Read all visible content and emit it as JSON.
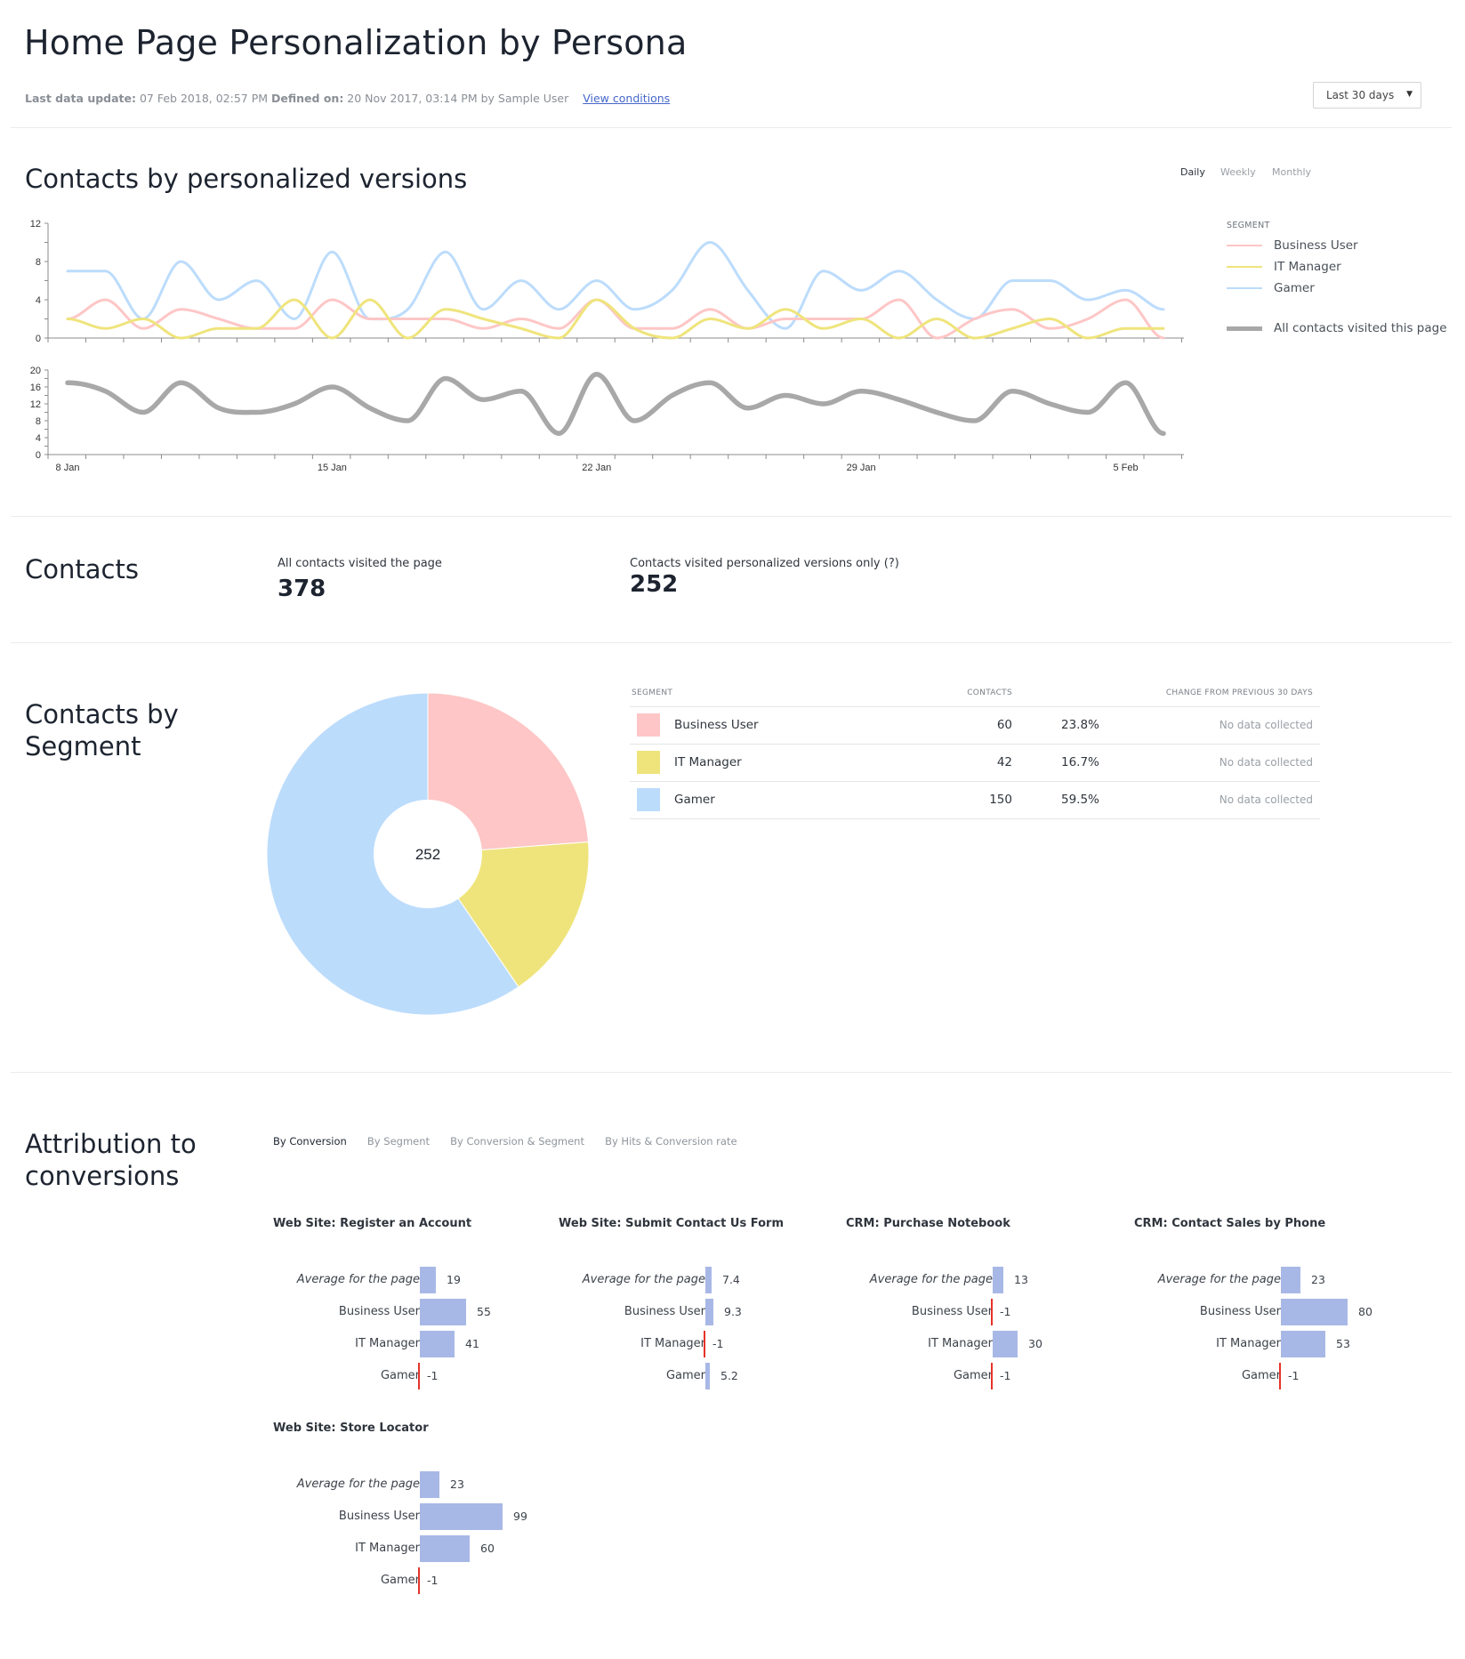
{
  "header": {
    "title": "Home Page Personalization by Persona",
    "meta": {
      "last_update_label": "Last data update:",
      "last_update_value": "07 Feb 2018, 02:57 PM",
      "defined_on_label": "Defined on:",
      "defined_on_value": "20 Nov 2017, 03:14 PM by Sample User",
      "view_conditions_link": "View conditions"
    },
    "date_range": {
      "selected": "Last 30 days",
      "caret": "▼"
    }
  },
  "colors": {
    "business_user": "#fec6c6",
    "it_manager": "#efe47c",
    "gamer": "#bcdcfc",
    "all_contacts": "#a8a8a8",
    "bar": "#a8b8e6",
    "negative_bar": "#e5332a",
    "link": "#4567c9"
  },
  "contacts_by_versions": {
    "title": "Contacts by personalized versions",
    "granularity": [
      {
        "label": "Daily",
        "active": true
      },
      {
        "label": "Weekly",
        "active": false
      },
      {
        "label": "Monthly",
        "active": false
      }
    ],
    "legend": {
      "heading": "SEGMENT",
      "items": [
        "Business User",
        "IT Manager",
        "Gamer"
      ],
      "total_label": "All contacts visited this page"
    }
  },
  "chart_data": [
    {
      "type": "line",
      "title": "Contacts by personalized versions (segments)",
      "x": [
        "8 Jan",
        "9 Jan",
        "10 Jan",
        "11 Jan",
        "12 Jan",
        "13 Jan",
        "14 Jan",
        "15 Jan",
        "16 Jan",
        "17 Jan",
        "18 Jan",
        "19 Jan",
        "20 Jan",
        "21 Jan",
        "22 Jan",
        "23 Jan",
        "24 Jan",
        "25 Jan",
        "26 Jan",
        "27 Jan",
        "28 Jan",
        "29 Jan",
        "30 Jan",
        "31 Jan",
        "1 Feb",
        "2 Feb",
        "3 Feb",
        "4 Feb",
        "5 Feb",
        "6 Feb"
      ],
      "x_tick_labels": [
        "8 Jan",
        "15 Jan",
        "22 Jan",
        "29 Jan",
        "5 Feb"
      ],
      "y_tick_labels": [
        "0",
        "4",
        "8",
        "12"
      ],
      "ylim": [
        0,
        12
      ],
      "series": [
        {
          "name": "Business User",
          "values": [
            2,
            4,
            1,
            3,
            2,
            1,
            1,
            4,
            2,
            2,
            2,
            1,
            2,
            1,
            4,
            1,
            1,
            3,
            1,
            2,
            2,
            2,
            4,
            0,
            2,
            3,
            1,
            2,
            4,
            0
          ]
        },
        {
          "name": "IT Manager",
          "values": [
            2,
            1,
            2,
            0,
            1,
            1,
            4,
            0,
            4,
            0,
            3,
            2,
            1,
            0,
            4,
            1,
            0,
            2,
            1,
            3,
            1,
            2,
            0,
            2,
            0,
            1,
            2,
            0,
            1,
            1
          ]
        },
        {
          "name": "Gamer",
          "values": [
            7,
            7,
            2,
            8,
            4,
            6,
            2,
            9,
            2,
            3,
            9,
            3,
            6,
            3,
            6,
            3,
            5,
            10,
            5,
            1,
            7,
            5,
            7,
            4,
            2,
            6,
            6,
            4,
            5,
            3
          ]
        }
      ]
    },
    {
      "type": "line",
      "title": "All contacts visited this page",
      "x": [
        "8 Jan",
        "9 Jan",
        "10 Jan",
        "11 Jan",
        "12 Jan",
        "13 Jan",
        "14 Jan",
        "15 Jan",
        "16 Jan",
        "17 Jan",
        "18 Jan",
        "19 Jan",
        "20 Jan",
        "21 Jan",
        "22 Jan",
        "23 Jan",
        "24 Jan",
        "25 Jan",
        "26 Jan",
        "27 Jan",
        "28 Jan",
        "29 Jan",
        "30 Jan",
        "31 Jan",
        "1 Feb",
        "2 Feb",
        "3 Feb",
        "4 Feb",
        "5 Feb",
        "6 Feb"
      ],
      "x_tick_labels": [
        "8 Jan",
        "15 Jan",
        "22 Jan",
        "29 Jan",
        "5 Feb"
      ],
      "y_tick_labels": [
        "0",
        "4",
        "8",
        "12",
        "16",
        "20"
      ],
      "ylim": [
        0,
        20
      ],
      "series": [
        {
          "name": "All contacts visited this page",
          "values": [
            17,
            15,
            10,
            17,
            11,
            10,
            12,
            16,
            11,
            8,
            18,
            13,
            15,
            5,
            19,
            8,
            14,
            17,
            11,
            14,
            12,
            15,
            13,
            10,
            8,
            15,
            12,
            10,
            17,
            5
          ]
        }
      ]
    },
    {
      "type": "pie",
      "title": "Contacts by Segment",
      "center_label": "252",
      "categories": [
        "Business User",
        "IT Manager",
        "Gamer"
      ],
      "values": [
        60,
        42,
        150
      ]
    }
  ],
  "contacts": {
    "title": "Contacts",
    "all_label": "All contacts visited the page",
    "all_value": "378",
    "personalized_label": "Contacts visited personalized versions only (?)",
    "personalized_value": "252"
  },
  "segments": {
    "title_line1": "Contacts by",
    "title_line2": "Segment",
    "columns": {
      "segment": "SEGMENT",
      "contacts": "CONTACTS",
      "change": "CHANGE FROM PREVIOUS 30 DAYS"
    },
    "rows": [
      {
        "name": "Business User",
        "contacts": "60",
        "percent": "23.8%",
        "change": "No data collected"
      },
      {
        "name": "IT Manager",
        "contacts": "42",
        "percent": "16.7%",
        "change": "No data collected"
      },
      {
        "name": "Gamer",
        "contacts": "150",
        "percent": "59.5%",
        "change": "No data collected"
      }
    ]
  },
  "attribution": {
    "title_line1": "Attribution to",
    "title_line2": "conversions",
    "tabs": [
      {
        "label": "By Conversion",
        "active": true
      },
      {
        "label": "By Segment",
        "active": false
      },
      {
        "label": "By Conversion & Segment",
        "active": false
      },
      {
        "label": "By Hits & Conversion rate",
        "active": false
      }
    ],
    "row_labels": [
      "Average for the page",
      "Business User",
      "IT Manager",
      "Gamer"
    ],
    "panels": [
      {
        "title": "Web Site: Register an Account",
        "values": [
          19,
          55,
          41,
          -1
        ],
        "labels": [
          "19",
          "55",
          "41",
          "-1"
        ]
      },
      {
        "title": "Web Site: Submit Contact Us Form",
        "values": [
          7.4,
          9.3,
          -1,
          5.2
        ],
        "labels": [
          "7.4",
          "9.3",
          "-1",
          "5.2"
        ]
      },
      {
        "title": "CRM: Purchase Notebook",
        "values": [
          13,
          -1,
          30,
          -1
        ],
        "labels": [
          "13",
          "-1",
          "30",
          "-1"
        ]
      },
      {
        "title": "CRM: Contact Sales by Phone",
        "values": [
          23,
          80,
          53,
          -1
        ],
        "labels": [
          "23",
          "80",
          "53",
          "-1"
        ]
      },
      {
        "title": "Web Site: Store Locator",
        "values": [
          23,
          99,
          60,
          -1
        ],
        "labels": [
          "23",
          "99",
          "60",
          "-1"
        ]
      }
    ]
  }
}
